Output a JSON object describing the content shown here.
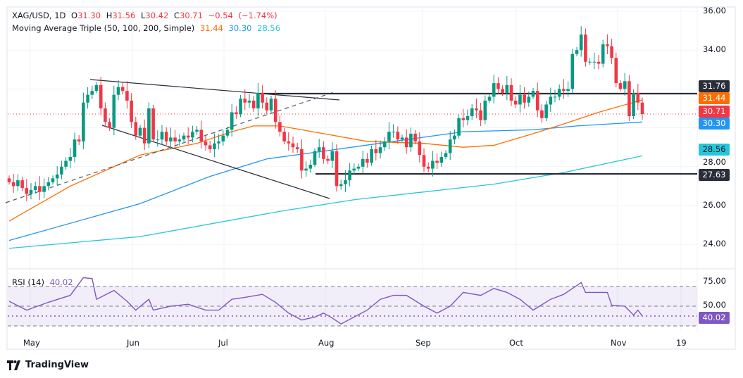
{
  "header": {
    "symbol": "XAG/USD, 1D",
    "open_label": "O",
    "open": "31.30",
    "high_label": "H",
    "high": "31.56",
    "low_label": "L",
    "low": "30.42",
    "close_label": "C",
    "close": "30.71",
    "change": "−0.54",
    "change_pct": "(−1.74%)"
  },
  "ma_legend": {
    "title": "Moving Average Triple (50, 100, 200, Simple)",
    "ma50": "31.44",
    "ma100": "30.30",
    "ma200": "28.56"
  },
  "rsi_legend": {
    "title": "RSI (14)",
    "value": "40.02"
  },
  "price_axis": [
    "36.00",
    "34.00",
    "28.00",
    "26.00",
    "24.00"
  ],
  "rsi_axis": [
    "75.00",
    "50.00"
  ],
  "tags": {
    "resistance": "31.76",
    "ma50": "31.44",
    "last": "30.71",
    "ma100": "30.30",
    "ma200": "28.56",
    "support": "27.63",
    "rsi": "40.02"
  },
  "time_axis": [
    "May",
    "Jun",
    "Jul",
    "Aug",
    "Sep",
    "Oct",
    "Nov",
    "19"
  ],
  "brand": "TradingView",
  "colors": {
    "up": "#089981",
    "down": "#f23645",
    "ma50": "#ff6d00",
    "ma100": "#2196f3",
    "ma200": "#26c6da",
    "rsi": "#7e57c2",
    "levels": "#2a2e39"
  },
  "chart_data": {
    "type": "candlestick",
    "ylim": [
      23,
      36
    ],
    "levels": [
      31.76,
      27.63
    ],
    "closes": [
      27.2,
      27.0,
      27.3,
      26.9,
      26.6,
      26.8,
      27.0,
      26.7,
      27.0,
      27.2,
      27.4,
      27.6,
      28.0,
      28.3,
      28.5,
      29.4,
      29.3,
      31.3,
      31.7,
      31.9,
      32.2,
      31.0,
      30.3,
      30.0,
      31.7,
      32.1,
      31.9,
      31.4,
      30.3,
      29.6,
      30.0,
      29.2,
      31.0,
      29.4,
      29.4,
      29.8,
      29.3,
      29.5,
      29.3,
      29.4,
      29.6,
      29.5,
      29.8,
      29.9,
      29.3,
      29.1,
      28.9,
      29.2,
      29.3,
      29.6,
      29.9,
      30.8,
      30.7,
      31.5,
      31.3,
      31.4,
      31.0,
      31.8,
      31.3,
      30.9,
      31.5,
      30.3,
      29.8,
      29.3,
      29.2,
      29.0,
      28.9,
      27.8,
      27.9,
      28.1,
      28.8,
      29.0,
      28.4,
      28.3,
      28.8,
      27.0,
      27.1,
      27.3,
      27.8,
      27.9,
      28.0,
      28.4,
      28.2,
      28.9,
      28.7,
      29.0,
      29.3,
      29.8,
      29.8,
      29.4,
      29.5,
      29.0,
      29.7,
      29.3,
      28.6,
      28.0,
      27.9,
      28.3,
      28.2,
      28.5,
      28.7,
      29.4,
      29.6,
      30.5,
      30.4,
      30.6,
      31.0,
      30.9,
      30.4,
      31.4,
      31.6,
      32.3,
      32.0,
      31.8,
      32.2,
      31.4,
      31.2,
      31.7,
      31.3,
      31.6,
      31.9,
      30.9,
      30.5,
      31.2,
      31.6,
      31.6,
      32.0,
      31.9,
      32.0,
      33.8,
      34.0,
      34.8,
      33.4,
      33.4,
      33.4,
      33.3,
      34.3,
      34.2,
      33.6,
      32.3,
      32.0,
      32.4,
      30.6,
      31.8,
      31.3,
      30.71
    ],
    "last_candle": {
      "open": 31.3,
      "high": 31.56,
      "low": 30.42,
      "close": 30.71
    },
    "ma50": [
      [
        0,
        25.2
      ],
      [
        14,
        27.0
      ],
      [
        30,
        28.6
      ],
      [
        43,
        29.2
      ],
      [
        51,
        29.8
      ],
      [
        56,
        30.1
      ],
      [
        62,
        30.1
      ],
      [
        72,
        29.7
      ],
      [
        82,
        29.3
      ],
      [
        95,
        29.2
      ],
      [
        104,
        29.0
      ],
      [
        111,
        29.1
      ],
      [
        120,
        29.7
      ],
      [
        127,
        30.2
      ],
      [
        135,
        30.8
      ],
      [
        145,
        31.44
      ]
    ],
    "ma100": [
      [
        0,
        24.2
      ],
      [
        30,
        26.1
      ],
      [
        46,
        27.5
      ],
      [
        59,
        28.4
      ],
      [
        72,
        28.8
      ],
      [
        88,
        29.3
      ],
      [
        104,
        29.8
      ],
      [
        120,
        29.9
      ],
      [
        130,
        30.1
      ],
      [
        145,
        30.3
      ]
    ],
    "ma200": [
      [
        0,
        23.8
      ],
      [
        30,
        24.4
      ],
      [
        62,
        25.7
      ],
      [
        79,
        26.3
      ],
      [
        95,
        26.7
      ],
      [
        111,
        27.1
      ],
      [
        127,
        27.7
      ],
      [
        145,
        28.56
      ]
    ],
    "rsi": [
      [
        0,
        55
      ],
      [
        4,
        46
      ],
      [
        9,
        54
      ],
      [
        14,
        61
      ],
      [
        17,
        79
      ],
      [
        19,
        78
      ],
      [
        20,
        57
      ],
      [
        24,
        66
      ],
      [
        27,
        55
      ],
      [
        29,
        46
      ],
      [
        32,
        57
      ],
      [
        33,
        46
      ],
      [
        37,
        50
      ],
      [
        41,
        52
      ],
      [
        45,
        46
      ],
      [
        48,
        46
      ],
      [
        51,
        57
      ],
      [
        54,
        59
      ],
      [
        58,
        62
      ],
      [
        61,
        54
      ],
      [
        64,
        43
      ],
      [
        67,
        36
      ],
      [
        70,
        39
      ],
      [
        72,
        43
      ],
      [
        74,
        38
      ],
      [
        76,
        32
      ],
      [
        79,
        39
      ],
      [
        82,
        46
      ],
      [
        85,
        57
      ],
      [
        88,
        61
      ],
      [
        91,
        61
      ],
      [
        95,
        50
      ],
      [
        98,
        43
      ],
      [
        101,
        50
      ],
      [
        104,
        64
      ],
      [
        108,
        61
      ],
      [
        111,
        68
      ],
      [
        114,
        64
      ],
      [
        117,
        57
      ],
      [
        120,
        46
      ],
      [
        124,
        57
      ],
      [
        127,
        62
      ],
      [
        129,
        68
      ],
      [
        131,
        74
      ],
      [
        132,
        64
      ],
      [
        137,
        64
      ],
      [
        138,
        51
      ],
      [
        141,
        50
      ],
      [
        143,
        41
      ],
      [
        144,
        46
      ],
      [
        145,
        40.02
      ]
    ],
    "rsi_bands": [
      70,
      50,
      30
    ]
  }
}
